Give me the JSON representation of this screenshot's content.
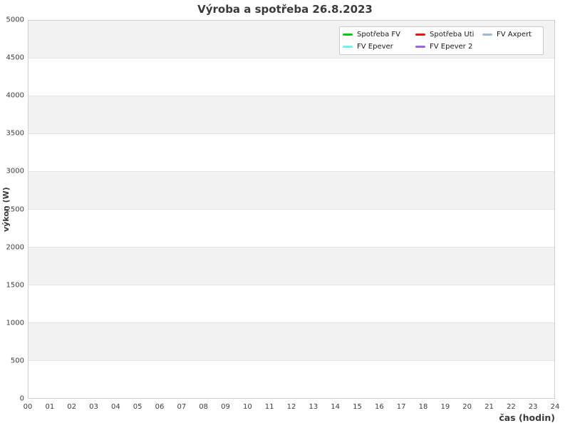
{
  "title": "Výroba a spotřeba 26.8.2023",
  "axes": {
    "y_label": "výkon (W)",
    "x_label": "čas (hodin)",
    "y_ticks": [
      "0",
      "500",
      "1000",
      "1500",
      "2000",
      "2500",
      "3000",
      "3500",
      "4000",
      "4500",
      "5000"
    ],
    "x_ticks": [
      "00",
      "01",
      "02",
      "03",
      "04",
      "05",
      "06",
      "07",
      "08",
      "09",
      "10",
      "11",
      "12",
      "13",
      "14",
      "15",
      "16",
      "17",
      "18",
      "19",
      "20",
      "21",
      "22",
      "23",
      "24"
    ]
  },
  "legend": {
    "position": "top-right",
    "items": [
      {
        "label": "Spotřeba FV",
        "color": "#00cc11"
      },
      {
        "label": "Spotřeba Uti",
        "color": "#ee1111"
      },
      {
        "label": "FV Axpert",
        "color": "#a3b8d9"
      },
      {
        "label": "FV Epever",
        "color": "#6ef5ea"
      },
      {
        "label": "FV Epever 2",
        "color": "#9966e0"
      }
    ]
  },
  "colors": {
    "band_gray": "#f2f2f2",
    "gridline": "#e5e5e5",
    "plot_border": "#cfcfcf",
    "text": "#3a3a3a"
  },
  "chart_data": {
    "type": "line",
    "title": "Výroba a spotřeba 26.8.2023",
    "xlabel": "čas (hodin)",
    "ylabel": "výkon (W)",
    "xlim": [
      0,
      24
    ],
    "ylim": [
      0,
      5000
    ],
    "x_tick_step": 1,
    "y_tick_step": 500,
    "grid": "horizontal striped bands, gray every other 500 W starting at top (4500-5000)",
    "legend_position": "top-right",
    "series": [
      {
        "name": "Spotřeba FV",
        "color": "#00cc11",
        "values": []
      },
      {
        "name": "Spotřeba Uti",
        "color": "#ee1111",
        "values": []
      },
      {
        "name": "FV Axpert",
        "color": "#a3b8d9",
        "values": []
      },
      {
        "name": "FV Epever",
        "color": "#6ef5ea",
        "values": []
      },
      {
        "name": "FV Epever 2",
        "color": "#9966e0",
        "values": []
      }
    ],
    "note": "plot area is empty - no data lines are rendered in the screenshot"
  }
}
